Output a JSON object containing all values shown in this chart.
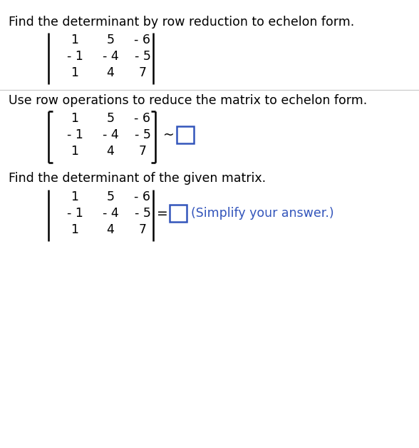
{
  "title_text": "Find the determinant by row reduction to echelon form.",
  "section2_text": "Use row operations to reduce the matrix to echelon form.",
  "section3_text": "Find the determinant of the given matrix.",
  "matrix_rows": [
    [
      "1",
      "5",
      "- 6"
    ],
    [
      "- 1",
      "- 4",
      "- 5"
    ],
    [
      "1",
      "4",
      "7"
    ]
  ],
  "simplify_text": "(Simplify your answer.)",
  "bg_color": "#ffffff",
  "text_color": "#000000",
  "blue_color": "#3355bb",
  "font_size_title": 12.5,
  "font_size_matrix": 12.5,
  "divider_color": "#cccccc"
}
